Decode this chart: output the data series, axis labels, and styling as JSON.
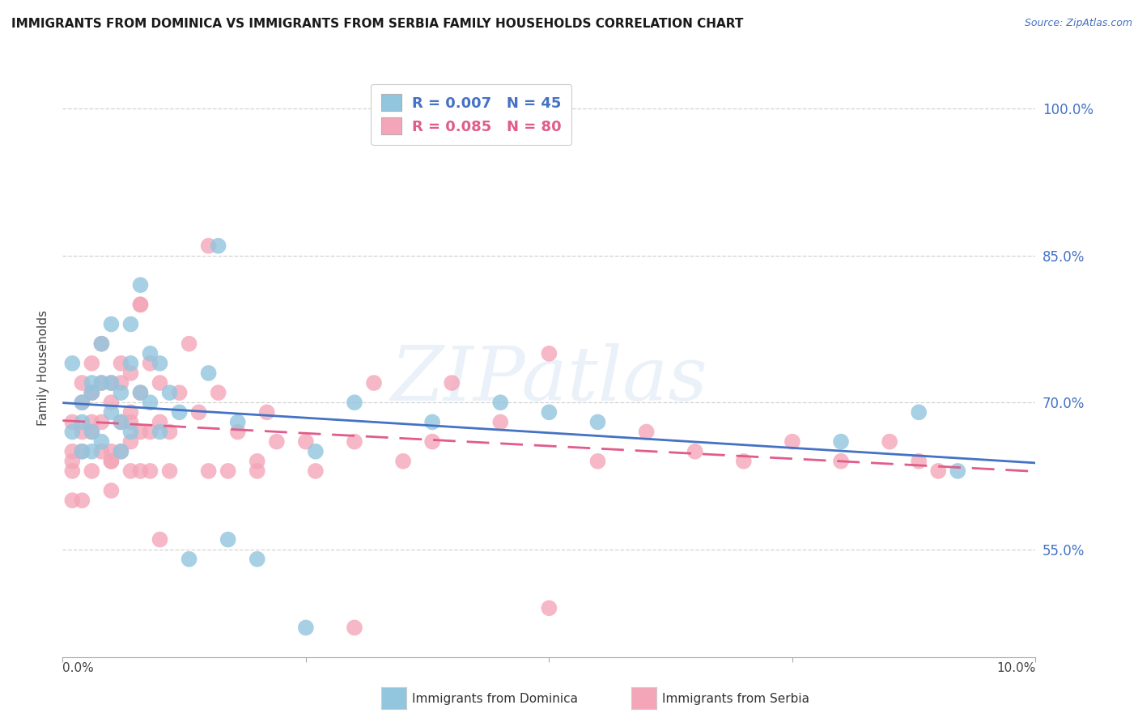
{
  "title": "IMMIGRANTS FROM DOMINICA VS IMMIGRANTS FROM SERBIA FAMILY HOUSEHOLDS CORRELATION CHART",
  "source": "Source: ZipAtlas.com",
  "ylabel": "Family Households",
  "xmin": 0.0,
  "xmax": 0.1,
  "ymin": 0.44,
  "ymax": 1.03,
  "legend_label1": "R = 0.007   N = 45",
  "legend_label2": "R = 0.085   N = 80",
  "color_blue": "#92c5de",
  "color_pink": "#f4a6b8",
  "line_color_blue": "#4472c4",
  "line_color_pink": "#e05c8a",
  "watermark": "ZIPatlas",
  "dominica_x": [
    0.001,
    0.001,
    0.002,
    0.002,
    0.002,
    0.003,
    0.003,
    0.003,
    0.003,
    0.004,
    0.004,
    0.004,
    0.005,
    0.005,
    0.005,
    0.006,
    0.006,
    0.006,
    0.007,
    0.007,
    0.007,
    0.008,
    0.008,
    0.009,
    0.009,
    0.01,
    0.01,
    0.011,
    0.012,
    0.013,
    0.015,
    0.016,
    0.017,
    0.018,
    0.02,
    0.025,
    0.026,
    0.03,
    0.038,
    0.045,
    0.05,
    0.055,
    0.08,
    0.088,
    0.092
  ],
  "dominica_y": [
    0.67,
    0.74,
    0.65,
    0.7,
    0.68,
    0.72,
    0.67,
    0.65,
    0.71,
    0.72,
    0.66,
    0.76,
    0.78,
    0.72,
    0.69,
    0.71,
    0.68,
    0.65,
    0.74,
    0.67,
    0.78,
    0.82,
    0.71,
    0.75,
    0.7,
    0.67,
    0.74,
    0.71,
    0.69,
    0.54,
    0.73,
    0.86,
    0.56,
    0.68,
    0.54,
    0.47,
    0.65,
    0.7,
    0.68,
    0.7,
    0.69,
    0.68,
    0.66,
    0.69,
    0.63
  ],
  "serbia_x": [
    0.001,
    0.001,
    0.001,
    0.001,
    0.002,
    0.002,
    0.002,
    0.002,
    0.003,
    0.003,
    0.003,
    0.003,
    0.003,
    0.004,
    0.004,
    0.004,
    0.004,
    0.005,
    0.005,
    0.005,
    0.005,
    0.005,
    0.006,
    0.006,
    0.006,
    0.006,
    0.007,
    0.007,
    0.007,
    0.007,
    0.007,
    0.008,
    0.008,
    0.008,
    0.008,
    0.009,
    0.009,
    0.009,
    0.01,
    0.01,
    0.011,
    0.011,
    0.012,
    0.013,
    0.014,
    0.015,
    0.016,
    0.017,
    0.018,
    0.02,
    0.021,
    0.022,
    0.025,
    0.026,
    0.03,
    0.032,
    0.035,
    0.038,
    0.04,
    0.045,
    0.05,
    0.055,
    0.06,
    0.065,
    0.07,
    0.075,
    0.08,
    0.085,
    0.088,
    0.09,
    0.05,
    0.03,
    0.02,
    0.015,
    0.01,
    0.008,
    0.005,
    0.003,
    0.002,
    0.001
  ],
  "serbia_y": [
    0.64,
    0.68,
    0.65,
    0.63,
    0.72,
    0.7,
    0.65,
    0.6,
    0.74,
    0.68,
    0.63,
    0.71,
    0.67,
    0.72,
    0.76,
    0.68,
    0.65,
    0.64,
    0.7,
    0.72,
    0.65,
    0.61,
    0.74,
    0.68,
    0.72,
    0.65,
    0.66,
    0.69,
    0.73,
    0.63,
    0.68,
    0.8,
    0.71,
    0.67,
    0.63,
    0.74,
    0.67,
    0.63,
    0.68,
    0.72,
    0.67,
    0.63,
    0.71,
    0.76,
    0.69,
    0.63,
    0.71,
    0.63,
    0.67,
    0.64,
    0.69,
    0.66,
    0.66,
    0.63,
    0.66,
    0.72,
    0.64,
    0.66,
    0.72,
    0.68,
    0.75,
    0.64,
    0.67,
    0.65,
    0.64,
    0.66,
    0.64,
    0.66,
    0.64,
    0.63,
    0.49,
    0.47,
    0.63,
    0.86,
    0.56,
    0.8,
    0.64,
    0.71,
    0.67,
    0.6
  ]
}
